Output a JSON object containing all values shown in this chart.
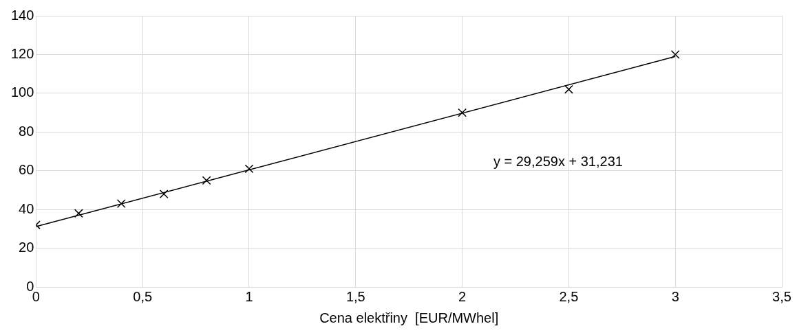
{
  "chart_data": {
    "type": "scatter",
    "xlabel": "Cena elektřiny  [EUR/MWhel]",
    "xlim": [
      0,
      3.5
    ],
    "xticks": [
      0,
      {
        "value": 0.5,
        "label": "0,5"
      },
      1,
      {
        "value": 1.5,
        "label": "1,5"
      },
      2,
      {
        "value": 2.5,
        "label": "2,5"
      },
      3,
      {
        "value": 3.5,
        "label": "3,5"
      }
    ],
    "ylim": [
      0,
      140
    ],
    "yticks": [
      0,
      20,
      40,
      60,
      80,
      100,
      120,
      140
    ],
    "grid": true,
    "legend": false,
    "series": [
      {
        "marker": "cross",
        "color": "#000000",
        "x": [
          0,
          0.2,
          0.4,
          0.6,
          0.8,
          1,
          2,
          2.5,
          3
        ],
        "values": [
          32,
          38,
          43,
          48,
          55,
          61,
          90,
          102,
          120
        ]
      },
      {
        "type": "line",
        "marker": "none",
        "color": "#000000",
        "x": [
          0,
          3
        ],
        "values": [
          31.2,
          119
        ],
        "line_style": "solid"
      }
    ],
    "annotations": [
      "y = 29,259x + 31,231"
    ]
  }
}
